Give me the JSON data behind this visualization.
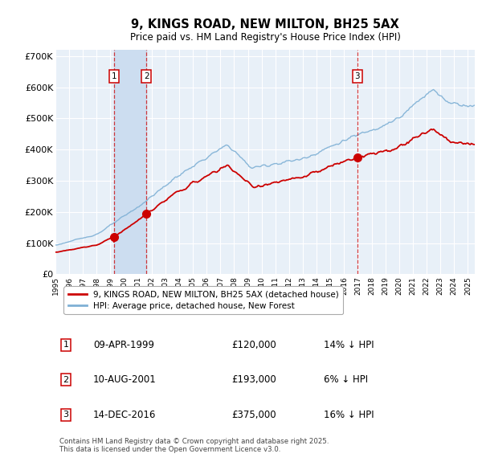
{
  "title": "9, KINGS ROAD, NEW MILTON, BH25 5AX",
  "subtitle": "Price paid vs. HM Land Registry's House Price Index (HPI)",
  "hpi_label": "HPI: Average price, detached house, New Forest",
  "property_label": "9, KINGS ROAD, NEW MILTON, BH25 5AX (detached house)",
  "sales": [
    {
      "num": 1,
      "date": "09-APR-1999",
      "price": 120000,
      "note": "14% ↓ HPI"
    },
    {
      "num": 2,
      "date": "10-AUG-2001",
      "price": 193000,
      "note": "6% ↓ HPI"
    },
    {
      "num": 3,
      "date": "14-DEC-2016",
      "price": 375000,
      "note": "16% ↓ HPI"
    }
  ],
  "sale_dates_decimal": [
    1999.27,
    2001.61,
    2016.96
  ],
  "ylabel_ticks": [
    "£0",
    "£100K",
    "£200K",
    "£300K",
    "£400K",
    "£500K",
    "£600K",
    "£700K"
  ],
  "ytick_values": [
    0,
    100000,
    200000,
    300000,
    400000,
    500000,
    600000,
    700000
  ],
  "ylim": [
    0,
    720000
  ],
  "xlim_start": 1995.0,
  "xlim_end": 2025.5,
  "background_color": "#ffffff",
  "plot_bg_color": "#e8f0f8",
  "grid_color": "#ffffff",
  "hpi_line_color": "#7eb0d5",
  "property_line_color": "#cc0000",
  "sale_marker_color": "#cc0000",
  "vline_color": "#cc0000",
  "shade_color": "#ccddf0",
  "footer_text": "Contains HM Land Registry data © Crown copyright and database right 2025.\nThis data is licensed under the Open Government Licence v3.0."
}
